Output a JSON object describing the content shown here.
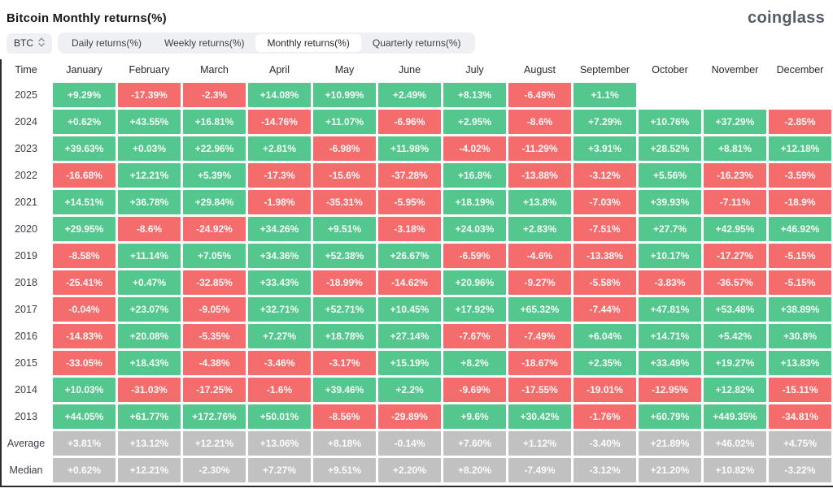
{
  "header": {
    "title": "Bitcoin Monthly returns(%)",
    "logo": "coinglass"
  },
  "toolbar": {
    "symbol": "BTC",
    "symbol_icon": "updown-chevron-icon",
    "tabs": [
      {
        "label": "Daily returns(%)",
        "active": false
      },
      {
        "label": "Weekly returns(%)",
        "active": false
      },
      {
        "label": "Monthly returns(%)",
        "active": true
      },
      {
        "label": "Quarterly returns(%)",
        "active": false
      }
    ]
  },
  "colors": {
    "positive": "#53c78d",
    "negative": "#f56c6c",
    "neutral": "#c1c1c1"
  },
  "table": {
    "columns": [
      "Time",
      "January",
      "February",
      "March",
      "April",
      "May",
      "June",
      "July",
      "August",
      "September",
      "October",
      "November",
      "December"
    ],
    "rows": [
      {
        "label": "2025",
        "kind": "year",
        "values": [
          "+9.29%",
          "-17.39%",
          "-2.3%",
          "+14.08%",
          "+10.99%",
          "+2.49%",
          "+8.13%",
          "-6.49%",
          "+1.1%",
          "",
          "",
          ""
        ]
      },
      {
        "label": "2024",
        "kind": "year",
        "values": [
          "+0.62%",
          "+43.55%",
          "+16.81%",
          "-14.76%",
          "+11.07%",
          "-6.96%",
          "+2.95%",
          "-8.6%",
          "+7.29%",
          "+10.76%",
          "+37.29%",
          "-2.85%"
        ]
      },
      {
        "label": "2023",
        "kind": "year",
        "values": [
          "+39.63%",
          "+0.03%",
          "+22.96%",
          "+2.81%",
          "-6.98%",
          "+11.98%",
          "-4.02%",
          "-11.29%",
          "+3.91%",
          "+28.52%",
          "+8.81%",
          "+12.18%"
        ]
      },
      {
        "label": "2022",
        "kind": "year",
        "values": [
          "-16.68%",
          "+12.21%",
          "+5.39%",
          "-17.3%",
          "-15.6%",
          "-37.28%",
          "+16.8%",
          "-13.88%",
          "-3.12%",
          "+5.56%",
          "-16.23%",
          "-3.59%"
        ]
      },
      {
        "label": "2021",
        "kind": "year",
        "values": [
          "+14.51%",
          "+36.78%",
          "+29.84%",
          "-1.98%",
          "-35.31%",
          "-5.95%",
          "+18.19%",
          "+13.8%",
          "-7.03%",
          "+39.93%",
          "-7.11%",
          "-18.9%"
        ]
      },
      {
        "label": "2020",
        "kind": "year",
        "values": [
          "+29.95%",
          "-8.6%",
          "-24.92%",
          "+34.26%",
          "+9.51%",
          "-3.18%",
          "+24.03%",
          "+2.83%",
          "-7.51%",
          "+27.7%",
          "+42.95%",
          "+46.92%"
        ]
      },
      {
        "label": "2019",
        "kind": "year",
        "values": [
          "-8.58%",
          "+11.14%",
          "+7.05%",
          "+34.36%",
          "+52.38%",
          "+26.67%",
          "-6.59%",
          "-4.6%",
          "-13.38%",
          "+10.17%",
          "-17.27%",
          "-5.15%"
        ]
      },
      {
        "label": "2018",
        "kind": "year",
        "values": [
          "-25.41%",
          "+0.47%",
          "-32.85%",
          "+33.43%",
          "-18.99%",
          "-14.62%",
          "+20.96%",
          "-9.27%",
          "-5.58%",
          "-3.83%",
          "-36.57%",
          "-5.15%"
        ]
      },
      {
        "label": "2017",
        "kind": "year",
        "values": [
          "-0.04%",
          "+23.07%",
          "-9.05%",
          "+32.71%",
          "+52.71%",
          "+10.45%",
          "+17.92%",
          "+65.32%",
          "-7.44%",
          "+47.81%",
          "+53.48%",
          "+38.89%"
        ]
      },
      {
        "label": "2016",
        "kind": "year",
        "values": [
          "-14.83%",
          "+20.08%",
          "-5.35%",
          "+7.27%",
          "+18.78%",
          "+27.14%",
          "-7.67%",
          "-7.49%",
          "+6.04%",
          "+14.71%",
          "+5.42%",
          "+30.8%"
        ]
      },
      {
        "label": "2015",
        "kind": "year",
        "values": [
          "-33.05%",
          "+18.43%",
          "-4.38%",
          "-3.46%",
          "-3.17%",
          "+15.19%",
          "+8.2%",
          "-18.67%",
          "+2.35%",
          "+33.49%",
          "+19.27%",
          "+13.83%"
        ]
      },
      {
        "label": "2014",
        "kind": "year",
        "values": [
          "+10.03%",
          "-31.03%",
          "-17.25%",
          "-1.6%",
          "+39.46%",
          "+2.2%",
          "-9.69%",
          "-17.55%",
          "-19.01%",
          "-12.95%",
          "+12.82%",
          "-15.11%"
        ]
      },
      {
        "label": "2013",
        "kind": "year",
        "values": [
          "+44.05%",
          "+61.77%",
          "+172.76%",
          "+50.01%",
          "-8.56%",
          "-29.89%",
          "+9.6%",
          "+30.42%",
          "-1.76%",
          "+60.79%",
          "+449.35%",
          "-34.81%"
        ]
      },
      {
        "label": "Average",
        "kind": "summary",
        "values": [
          "+3.81%",
          "+13.12%",
          "+12.21%",
          "+13.06%",
          "+8.18%",
          "-0.14%",
          "+7.60%",
          "+1.12%",
          "-3.40%",
          "+21.89%",
          "+46.02%",
          "+4.75%"
        ]
      },
      {
        "label": "Median",
        "kind": "summary",
        "values": [
          "+0.62%",
          "+12.21%",
          "-2.30%",
          "+7.27%",
          "+9.51%",
          "+2.20%",
          "+8.20%",
          "-7.49%",
          "-3.12%",
          "+21.20%",
          "+10.82%",
          "-3.22%"
        ]
      }
    ]
  }
}
